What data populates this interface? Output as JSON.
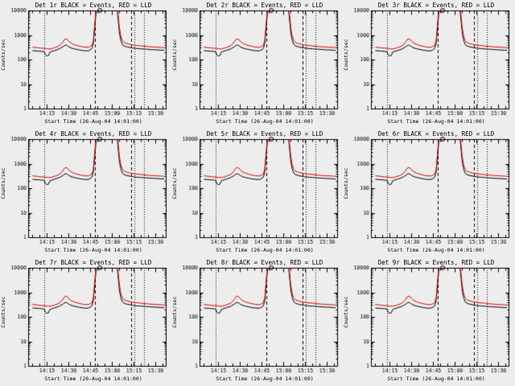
{
  "page": {
    "background": "#ededed"
  },
  "chart_data": {
    "type": "line",
    "panels": [
      {
        "title": "Det 1r BLACK = Events, RED = LLD"
      },
      {
        "title": "Det 2r BLACK = Events, RED = LLD"
      },
      {
        "title": "Det 3r BLACK = Events, RED = LLD"
      },
      {
        "title": "Det 4r BLACK = Events, RED = LLD"
      },
      {
        "title": "Det 5r BLACK = Events, RED = LLD"
      },
      {
        "title": "Det 6r BLACK = Events, RED = LLD"
      },
      {
        "title": "Det 7r BLACK = Events, RED = LLD"
      },
      {
        "title": "Det 8r BLACK = Events, RED = LLD"
      },
      {
        "title": "Det 9r BLACK = Events, RED = LLD"
      }
    ],
    "xlabel": "Start Time (26-Aug-04 14:01:00)",
    "ylabel": "Counts/sec",
    "ylim": [
      1,
      10000
    ],
    "y_ticks": [
      "1",
      "10",
      "100",
      "1000",
      "10000"
    ],
    "xlim_minutes": [
      2,
      97
    ],
    "x_ticks": [
      {
        "t": 15,
        "label": "14:15"
      },
      {
        "t": 30,
        "label": "14:30"
      },
      {
        "t": 45,
        "label": "14:45"
      },
      {
        "t": 60,
        "label": "15:00"
      },
      {
        "t": 75,
        "label": "15:15"
      },
      {
        "t": 90,
        "label": "15:30"
      }
    ],
    "vlines_dotted": [
      13,
      75.5,
      82
    ],
    "vlines_dashed": [
      48,
      73
    ],
    "saturation_marker": {
      "t": 51.5,
      "value": 10000,
      "shape": "circle"
    },
    "x_minutes": [
      5,
      7,
      9,
      11,
      13,
      14,
      15,
      16,
      17,
      18,
      20,
      22,
      24,
      26,
      27,
      28,
      29,
      30,
      32,
      34,
      36,
      38,
      40,
      42,
      44,
      46,
      47,
      48,
      49,
      50,
      52,
      54,
      56,
      58,
      60,
      62,
      63,
      64,
      65,
      66,
      67,
      68,
      70,
      72,
      74,
      76,
      78,
      80,
      82,
      84,
      86,
      88,
      90,
      92,
      94,
      96
    ],
    "series": [
      {
        "name": "Events",
        "color": "#000000",
        "values": [
          230,
          225,
          220,
          215,
          210,
          150,
          140,
          145,
          200,
          210,
          230,
          250,
          280,
          330,
          370,
          390,
          370,
          330,
          290,
          270,
          255,
          240,
          230,
          225,
          230,
          280,
          450,
          2000,
          10000,
          30000,
          50000,
          50000,
          50000,
          50000,
          50000,
          40000,
          20000,
          5000,
          1200,
          600,
          420,
          360,
          330,
          310,
          295,
          285,
          278,
          272,
          268,
          262,
          256,
          252,
          248,
          244,
          240,
          236
        ]
      },
      {
        "name": "LLD",
        "color": "#dd0000",
        "values": [
          320,
          310,
          300,
          290,
          285,
          280,
          275,
          270,
          272,
          278,
          300,
          330,
          380,
          520,
          650,
          700,
          660,
          560,
          450,
          400,
          370,
          345,
          325,
          315,
          320,
          380,
          600,
          3000,
          15000,
          40000,
          60000,
          60000,
          60000,
          60000,
          60000,
          50000,
          30000,
          8000,
          2000,
          900,
          600,
          500,
          450,
          420,
          400,
          380,
          370,
          360,
          350,
          340,
          330,
          325,
          320,
          315,
          310,
          305
        ]
      }
    ],
    "legend_note": "BLACK = Events, RED = LLD",
    "grid": "off",
    "y_scale": "log"
  }
}
